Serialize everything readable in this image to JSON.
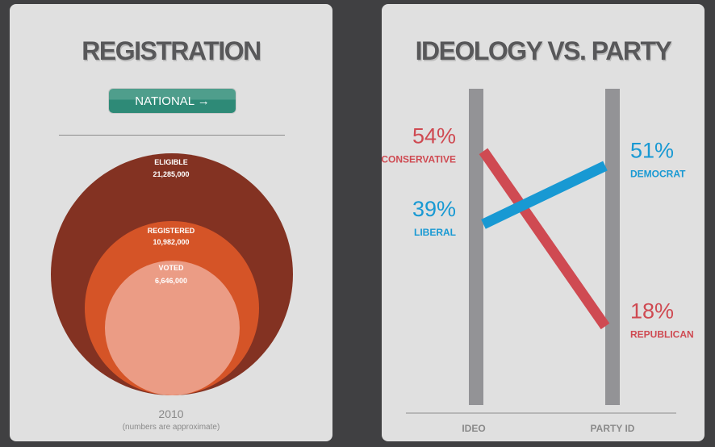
{
  "registration": {
    "title": "REGISTRATION",
    "button_label": "NATIONAL →",
    "year": "2010",
    "note": "(numbers are approximate)",
    "circles": [
      {
        "label": "ELIGIBLE",
        "value": "21,285,000",
        "color": "#833222"
      },
      {
        "label": "REGISTERED",
        "value": "10,982,000",
        "color": "#d55427"
      },
      {
        "label": "VOTED",
        "value": "6,646,000",
        "color": "#eb9c85"
      }
    ]
  },
  "chart_data": {
    "type": "line",
    "title": "IDEOLOGY VS. PARTY",
    "categories": [
      "IDEO",
      "PARTY ID"
    ],
    "series": [
      {
        "name": "Conservative/Republican",
        "values": [
          54,
          18
        ],
        "labels": [
          "CONSERVATIVE",
          "REPUBLICAN"
        ],
        "display": [
          "54%",
          "18%"
        ],
        "color": "#cf4a52"
      },
      {
        "name": "Liberal/Democrat",
        "values": [
          39,
          51
        ],
        "labels": [
          "LIBERAL",
          "DEMOCRAT"
        ],
        "display": [
          "39%",
          "51%"
        ],
        "color": "#1899d3"
      }
    ],
    "ylim": [
      0,
      85
    ]
  }
}
